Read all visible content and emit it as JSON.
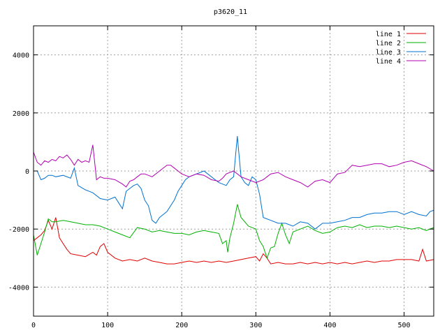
{
  "chart_data": {
    "type": "line",
    "title": "p3620_11",
    "xlabel": "",
    "ylabel": "",
    "xlim": [
      0,
      540
    ],
    "ylim": [
      -5000,
      5000
    ],
    "xticks": [
      0,
      100,
      200,
      300,
      400,
      500
    ],
    "yticks": [
      -4000,
      -2000,
      0,
      2000,
      4000
    ],
    "grid": true,
    "legend_position": "top-right",
    "series": [
      {
        "name": "line 1",
        "color": "#e00000",
        "points": [
          [
            0,
            -2400
          ],
          [
            5,
            -2300
          ],
          [
            10,
            -2200
          ],
          [
            15,
            -2050
          ],
          [
            20,
            -1700
          ],
          [
            25,
            -2000
          ],
          [
            30,
            -1600
          ],
          [
            35,
            -2300
          ],
          [
            40,
            -2500
          ],
          [
            45,
            -2700
          ],
          [
            50,
            -2850
          ],
          [
            60,
            -2900
          ],
          [
            70,
            -2950
          ],
          [
            80,
            -2800
          ],
          [
            85,
            -2900
          ],
          [
            90,
            -2600
          ],
          [
            95,
            -2500
          ],
          [
            100,
            -2800
          ],
          [
            110,
            -3000
          ],
          [
            120,
            -3100
          ],
          [
            130,
            -3050
          ],
          [
            140,
            -3100
          ],
          [
            150,
            -3000
          ],
          [
            160,
            -3100
          ],
          [
            170,
            -3150
          ],
          [
            180,
            -3200
          ],
          [
            190,
            -3200
          ],
          [
            200,
            -3150
          ],
          [
            210,
            -3100
          ],
          [
            220,
            -3150
          ],
          [
            230,
            -3100
          ],
          [
            240,
            -3150
          ],
          [
            250,
            -3100
          ],
          [
            260,
            -3150
          ],
          [
            270,
            -3100
          ],
          [
            280,
            -3050
          ],
          [
            290,
            -3000
          ],
          [
            300,
            -2950
          ],
          [
            305,
            -3100
          ],
          [
            310,
            -2850
          ],
          [
            315,
            -3000
          ],
          [
            320,
            -3200
          ],
          [
            330,
            -3150
          ],
          [
            340,
            -3200
          ],
          [
            350,
            -3200
          ],
          [
            360,
            -3150
          ],
          [
            370,
            -3200
          ],
          [
            380,
            -3150
          ],
          [
            390,
            -3200
          ],
          [
            400,
            -3150
          ],
          [
            410,
            -3200
          ],
          [
            420,
            -3150
          ],
          [
            430,
            -3200
          ],
          [
            440,
            -3150
          ],
          [
            450,
            -3100
          ],
          [
            460,
            -3150
          ],
          [
            470,
            -3100
          ],
          [
            480,
            -3100
          ],
          [
            490,
            -3050
          ],
          [
            500,
            -3050
          ],
          [
            510,
            -3050
          ],
          [
            520,
            -3100
          ],
          [
            525,
            -2700
          ],
          [
            530,
            -3100
          ],
          [
            540,
            -3050
          ]
        ]
      },
      {
        "name": "line 2",
        "color": "#00b000",
        "points": [
          [
            0,
            -2200
          ],
          [
            5,
            -2900
          ],
          [
            10,
            -2500
          ],
          [
            15,
            -2100
          ],
          [
            20,
            -1650
          ],
          [
            25,
            -1750
          ],
          [
            30,
            -1750
          ],
          [
            40,
            -1700
          ],
          [
            50,
            -1750
          ],
          [
            60,
            -1800
          ],
          [
            70,
            -1850
          ],
          [
            80,
            -1850
          ],
          [
            90,
            -1900
          ],
          [
            100,
            -2000
          ],
          [
            110,
            -2100
          ],
          [
            120,
            -2200
          ],
          [
            130,
            -2300
          ],
          [
            140,
            -1950
          ],
          [
            150,
            -2000
          ],
          [
            160,
            -2100
          ],
          [
            170,
            -2050
          ],
          [
            180,
            -2100
          ],
          [
            190,
            -2150
          ],
          [
            200,
            -2150
          ],
          [
            210,
            -2200
          ],
          [
            220,
            -2100
          ],
          [
            230,
            -2050
          ],
          [
            240,
            -2100
          ],
          [
            250,
            -2150
          ],
          [
            255,
            -2500
          ],
          [
            260,
            -2400
          ],
          [
            262,
            -2800
          ],
          [
            265,
            -2300
          ],
          [
            270,
            -1800
          ],
          [
            275,
            -1150
          ],
          [
            280,
            -1600
          ],
          [
            290,
            -1900
          ],
          [
            300,
            -2000
          ],
          [
            305,
            -2400
          ],
          [
            310,
            -2600
          ],
          [
            315,
            -3000
          ],
          [
            320,
            -2650
          ],
          [
            325,
            -2600
          ],
          [
            330,
            -2150
          ],
          [
            335,
            -1800
          ],
          [
            340,
            -2200
          ],
          [
            345,
            -2500
          ],
          [
            350,
            -2100
          ],
          [
            360,
            -2000
          ],
          [
            370,
            -1900
          ],
          [
            380,
            -2050
          ],
          [
            390,
            -2150
          ],
          [
            400,
            -2100
          ],
          [
            410,
            -1950
          ],
          [
            420,
            -1900
          ],
          [
            430,
            -1950
          ],
          [
            440,
            -1850
          ],
          [
            450,
            -1950
          ],
          [
            460,
            -1900
          ],
          [
            470,
            -1900
          ],
          [
            480,
            -1950
          ],
          [
            490,
            -1900
          ],
          [
            500,
            -1950
          ],
          [
            510,
            -2000
          ],
          [
            520,
            -1950
          ],
          [
            530,
            -2050
          ],
          [
            540,
            -1950
          ]
        ]
      },
      {
        "name": "line 3",
        "color": "#0070d0",
        "points": [
          [
            0,
            0
          ],
          [
            5,
            0
          ],
          [
            10,
            -300
          ],
          [
            15,
            -250
          ],
          [
            20,
            -150
          ],
          [
            25,
            -150
          ],
          [
            30,
            -200
          ],
          [
            40,
            -150
          ],
          [
            50,
            -250
          ],
          [
            55,
            100
          ],
          [
            60,
            -500
          ],
          [
            70,
            -650
          ],
          [
            80,
            -750
          ],
          [
            90,
            -950
          ],
          [
            100,
            -1000
          ],
          [
            110,
            -900
          ],
          [
            115,
            -1100
          ],
          [
            120,
            -1300
          ],
          [
            125,
            -700
          ],
          [
            130,
            -600
          ],
          [
            135,
            -500
          ],
          [
            140,
            -450
          ],
          [
            145,
            -600
          ],
          [
            150,
            -1000
          ],
          [
            155,
            -1200
          ],
          [
            160,
            -1700
          ],
          [
            165,
            -1800
          ],
          [
            170,
            -1600
          ],
          [
            175,
            -1500
          ],
          [
            180,
            -1400
          ],
          [
            185,
            -1200
          ],
          [
            190,
            -1000
          ],
          [
            195,
            -700
          ],
          [
            200,
            -500
          ],
          [
            205,
            -300
          ],
          [
            210,
            -200
          ],
          [
            220,
            -100
          ],
          [
            230,
            0
          ],
          [
            240,
            -200
          ],
          [
            250,
            -400
          ],
          [
            260,
            -500
          ],
          [
            265,
            -300
          ],
          [
            270,
            -200
          ],
          [
            275,
            1200
          ],
          [
            280,
            -200
          ],
          [
            285,
            -400
          ],
          [
            290,
            -500
          ],
          [
            295,
            -200
          ],
          [
            300,
            -300
          ],
          [
            305,
            -800
          ],
          [
            310,
            -1600
          ],
          [
            320,
            -1700
          ],
          [
            330,
            -1800
          ],
          [
            340,
            -1800
          ],
          [
            350,
            -1900
          ],
          [
            360,
            -1750
          ],
          [
            370,
            -1800
          ],
          [
            380,
            -2000
          ],
          [
            390,
            -1800
          ],
          [
            400,
            -1800
          ],
          [
            410,
            -1750
          ],
          [
            420,
            -1700
          ],
          [
            430,
            -1600
          ],
          [
            440,
            -1600
          ],
          [
            450,
            -1500
          ],
          [
            460,
            -1450
          ],
          [
            470,
            -1450
          ],
          [
            480,
            -1400
          ],
          [
            490,
            -1400
          ],
          [
            500,
            -1500
          ],
          [
            510,
            -1400
          ],
          [
            520,
            -1500
          ],
          [
            530,
            -1550
          ],
          [
            535,
            -1400
          ],
          [
            540,
            -1350
          ]
        ]
      },
      {
        "name": "line 4",
        "color": "#b000b0",
        "points": [
          [
            0,
            650
          ],
          [
            5,
            300
          ],
          [
            10,
            200
          ],
          [
            15,
            350
          ],
          [
            20,
            300
          ],
          [
            25,
            400
          ],
          [
            30,
            350
          ],
          [
            35,
            500
          ],
          [
            40,
            450
          ],
          [
            45,
            550
          ],
          [
            50,
            400
          ],
          [
            55,
            200
          ],
          [
            60,
            400
          ],
          [
            65,
            300
          ],
          [
            70,
            350
          ],
          [
            75,
            300
          ],
          [
            80,
            900
          ],
          [
            85,
            -300
          ],
          [
            90,
            -200
          ],
          [
            95,
            -250
          ],
          [
            100,
            -250
          ],
          [
            110,
            -300
          ],
          [
            120,
            -450
          ],
          [
            125,
            -550
          ],
          [
            130,
            -350
          ],
          [
            135,
            -300
          ],
          [
            140,
            -200
          ],
          [
            145,
            -100
          ],
          [
            150,
            -100
          ],
          [
            160,
            -200
          ],
          [
            170,
            0
          ],
          [
            180,
            200
          ],
          [
            185,
            200
          ],
          [
            190,
            100
          ],
          [
            200,
            -100
          ],
          [
            210,
            -200
          ],
          [
            220,
            -100
          ],
          [
            230,
            -150
          ],
          [
            240,
            -300
          ],
          [
            250,
            -350
          ],
          [
            255,
            -250
          ],
          [
            260,
            -100
          ],
          [
            270,
            0
          ],
          [
            280,
            -200
          ],
          [
            290,
            -300
          ],
          [
            300,
            -400
          ],
          [
            310,
            -300
          ],
          [
            320,
            -100
          ],
          [
            330,
            -50
          ],
          [
            340,
            -200
          ],
          [
            350,
            -300
          ],
          [
            360,
            -400
          ],
          [
            370,
            -550
          ],
          [
            380,
            -350
          ],
          [
            390,
            -300
          ],
          [
            400,
            -400
          ],
          [
            410,
            -100
          ],
          [
            420,
            -50
          ],
          [
            430,
            200
          ],
          [
            440,
            150
          ],
          [
            450,
            200
          ],
          [
            460,
            250
          ],
          [
            470,
            250
          ],
          [
            480,
            150
          ],
          [
            490,
            200
          ],
          [
            500,
            300
          ],
          [
            510,
            350
          ],
          [
            520,
            250
          ],
          [
            530,
            150
          ],
          [
            540,
            0
          ]
        ]
      }
    ]
  }
}
